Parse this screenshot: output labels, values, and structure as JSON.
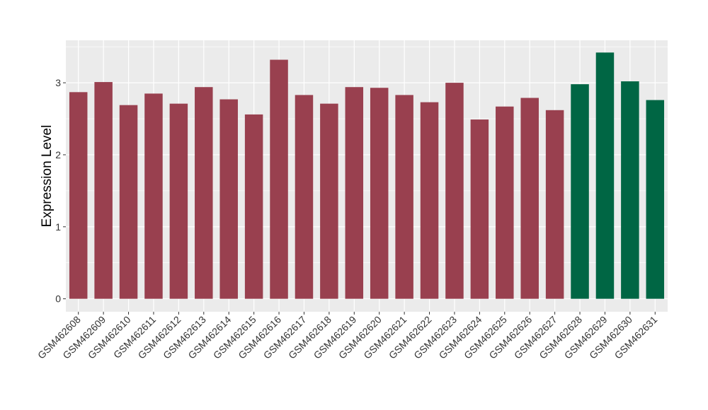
{
  "chart_data": {
    "type": "bar",
    "y_label": "Expression Level",
    "categories": [
      "GSM462608",
      "GSM462609",
      "GSM462610",
      "GSM462611",
      "GSM462612",
      "GSM462613",
      "GSM462614",
      "GSM462615",
      "GSM462616",
      "GSM462617",
      "GSM462618",
      "GSM462619",
      "GSM462620",
      "GSM462621",
      "GSM462622",
      "GSM462623",
      "GSM462624",
      "GSM462625",
      "GSM462626",
      "GSM462627",
      "GSM462628",
      "GSM462629",
      "GSM462630",
      "GSM462631"
    ],
    "values": [
      2.87,
      3.01,
      2.69,
      2.85,
      2.71,
      2.94,
      2.77,
      2.56,
      3.32,
      2.83,
      2.71,
      2.94,
      2.93,
      2.83,
      2.73,
      3.0,
      2.49,
      2.67,
      2.79,
      2.62,
      2.98,
      3.42,
      3.02,
      2.76
    ],
    "colors": [
      "#99404f",
      "#99404f",
      "#99404f",
      "#99404f",
      "#99404f",
      "#99404f",
      "#99404f",
      "#99404f",
      "#99404f",
      "#99404f",
      "#99404f",
      "#99404f",
      "#99404f",
      "#99404f",
      "#99404f",
      "#99404f",
      "#99404f",
      "#99404f",
      "#99404f",
      "#99404f",
      "#006644",
      "#006644",
      "#006644",
      "#006644"
    ],
    "ylim": [
      -0.18,
      3.59
    ],
    "yticks": [
      0,
      1,
      2,
      3
    ],
    "yticks_minor": [
      0.5,
      1.5,
      2.5,
      3.5
    ],
    "grid": true
  }
}
